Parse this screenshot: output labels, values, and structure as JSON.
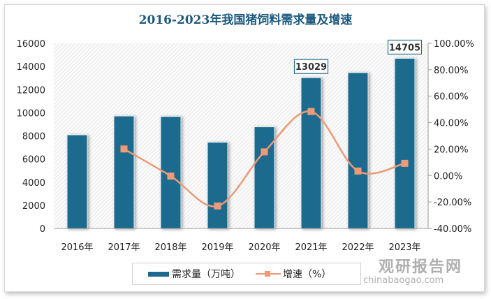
{
  "chart_data": {
    "type": "bar+line",
    "title": "2016-2023年我国猪饲料需求量及增速",
    "categories": [
      "2016年",
      "2017年",
      "2018年",
      "2019年",
      "2020年",
      "2021年",
      "2022年",
      "2023年"
    ],
    "series": [
      {
        "name": "需求量（万吨）",
        "type": "bar",
        "axis": "left",
        "color": "#1b6a8e",
        "values": [
          8090,
          9720,
          9680,
          7450,
          8780,
          13029,
          13470,
          14705
        ]
      },
      {
        "name": "增速（%）",
        "type": "line",
        "axis": "right",
        "color": "#ec9a78",
        "marker": "square",
        "values": [
          null,
          20.1,
          -0.4,
          -23.0,
          17.9,
          48.4,
          3.4,
          9.2
        ]
      }
    ],
    "data_labels": [
      {
        "category": "2021年",
        "text": "13029"
      },
      {
        "category": "2023年",
        "text": "14705"
      }
    ],
    "ylim_left": [
      0,
      16000
    ],
    "yticks_left": [
      "0",
      "2000",
      "4000",
      "6000",
      "8000",
      "10000",
      "12000",
      "14000",
      "16000"
    ],
    "ylim_right": [
      -40,
      100
    ],
    "yticks_right": [
      "-40.00%",
      "-20.00%",
      "0.00%",
      "20.00%",
      "40.00%",
      "60.00%",
      "80.00%",
      "100.00%"
    ],
    "legend_position": "bottom",
    "grid": false
  },
  "watermark": {
    "name": "观研报告网",
    "url": "chinabaogao.com"
  }
}
